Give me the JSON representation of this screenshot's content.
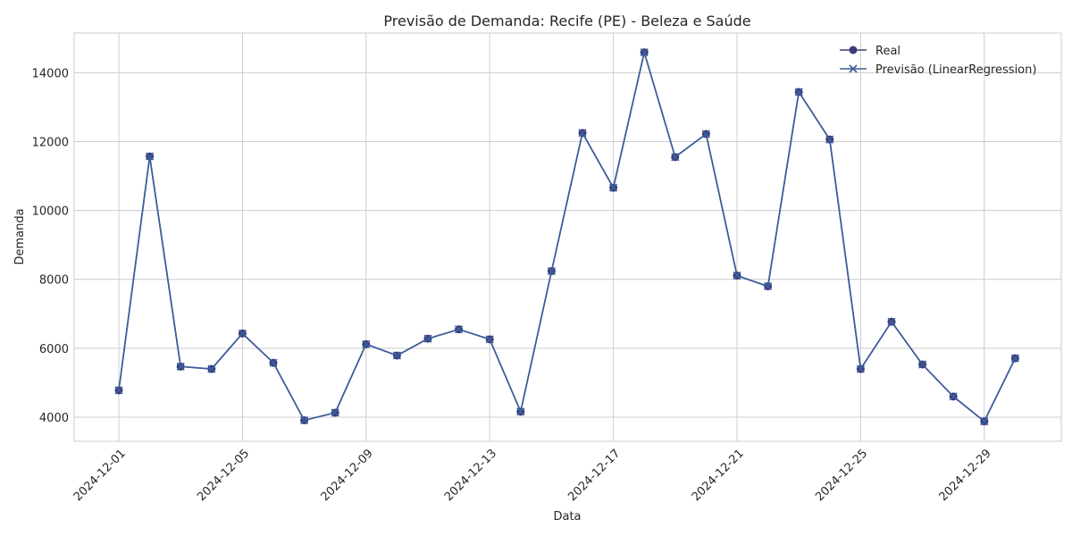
{
  "chart_data": {
    "type": "line",
    "title": "Previsão de Demanda: Recife (PE) - Beleza e Saúde",
    "xlabel": "Data",
    "ylabel": "Demanda",
    "x": [
      "2024-12-01",
      "2024-12-02",
      "2024-12-03",
      "2024-12-04",
      "2024-12-05",
      "2024-12-06",
      "2024-12-07",
      "2024-12-08",
      "2024-12-09",
      "2024-12-10",
      "2024-12-11",
      "2024-12-12",
      "2024-12-13",
      "2024-12-14",
      "2024-12-15",
      "2024-12-16",
      "2024-12-17",
      "2024-12-18",
      "2024-12-19",
      "2024-12-20",
      "2024-12-21",
      "2024-12-22",
      "2024-12-23",
      "2024-12-24",
      "2024-12-25",
      "2024-12-26",
      "2024-12-27",
      "2024-12-28",
      "2024-12-29",
      "2024-12-30"
    ],
    "x_ticks": [
      "2024-12-01",
      "2024-12-05",
      "2024-12-09",
      "2024-12-13",
      "2024-12-17",
      "2024-12-21",
      "2024-12-25",
      "2024-12-29"
    ],
    "y_ticks": [
      4000,
      6000,
      8000,
      10000,
      12000,
      14000
    ],
    "ylim": [
      3300,
      15150
    ],
    "grid": true,
    "legend_position": "top-right",
    "series": [
      {
        "name": "Real",
        "marker": "circle",
        "color": "#3e3a7a",
        "values": [
          4780,
          11570,
          5470,
          5400,
          6430,
          5580,
          3910,
          4130,
          6120,
          5790,
          6280,
          6550,
          6260,
          4160,
          8240,
          12250,
          10660,
          14590,
          11550,
          12220,
          8110,
          7800,
          13440,
          12060,
          5400,
          6770,
          5530,
          4600,
          3880,
          5710
        ]
      },
      {
        "name": "Previsão (LinearRegression)",
        "marker": "x",
        "color": "#3a5d9b",
        "values": [
          4780,
          11570,
          5470,
          5400,
          6430,
          5580,
          3910,
          4130,
          6120,
          5790,
          6280,
          6550,
          6260,
          4160,
          8240,
          12250,
          10660,
          14590,
          11550,
          12220,
          8110,
          7800,
          13440,
          12060,
          5400,
          6770,
          5530,
          4600,
          3880,
          5710
        ]
      }
    ]
  }
}
